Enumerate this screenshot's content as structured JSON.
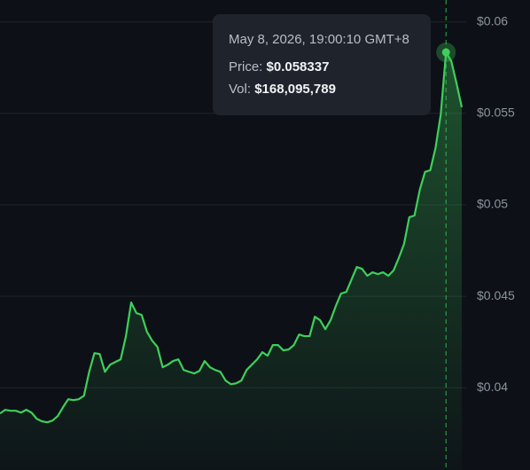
{
  "chart_data": {
    "type": "line",
    "color": "#3fcf5a",
    "values": [
      0.03859,
      0.03879,
      0.03874,
      0.03874,
      0.03864,
      0.03879,
      0.03864,
      0.0383,
      0.03816,
      0.03811,
      0.0382,
      0.03845,
      0.03893,
      0.03937,
      0.03932,
      0.03937,
      0.03956,
      0.04087,
      0.04189,
      0.04184,
      0.04087,
      0.04126,
      0.04141,
      0.04155,
      0.04282,
      0.04466,
      0.04408,
      0.04398,
      0.04306,
      0.04257,
      0.04223,
      0.04112,
      0.04126,
      0.04146,
      0.04155,
      0.04097,
      0.04087,
      0.04078,
      0.04092,
      0.04146,
      0.04112,
      0.04097,
      0.04087,
      0.04039,
      0.04019,
      0.04024,
      0.04039,
      0.04097,
      0.04126,
      0.04155,
      0.04194,
      0.04175,
      0.04233,
      0.04233,
      0.04204,
      0.04209,
      0.04233,
      0.04291,
      0.04282,
      0.04282,
      0.04388,
      0.04369,
      0.0432,
      0.04369,
      0.04447,
      0.04515,
      0.04524,
      0.04592,
      0.0466,
      0.0465,
      0.04612,
      0.04631,
      0.04621,
      0.04631,
      0.04612,
      0.04641,
      0.04709,
      0.04786,
      0.04932,
      0.04942,
      0.05082,
      0.0518,
      0.05189,
      0.05311,
      0.05495,
      0.058337,
      0.05786,
      0.05665,
      0.05534
    ],
    "ylim": [
      0.0355,
      0.0612
    ],
    "yticks": [
      {
        "value": 0.04,
        "label": "$0.04"
      },
      {
        "value": 0.045,
        "label": "$0.045"
      },
      {
        "value": 0.05,
        "label": "$0.05"
      },
      {
        "value": 0.055,
        "label": "$0.055"
      },
      {
        "value": 0.06,
        "label": "$0.06"
      }
    ],
    "grid": true,
    "tooltip": {
      "date": "May 8, 2026, 19:00:10 GMT+8",
      "price_label": "Price:",
      "price": "$0.058337",
      "vol_label": "Vol:",
      "vol": "$168,095,789"
    }
  }
}
